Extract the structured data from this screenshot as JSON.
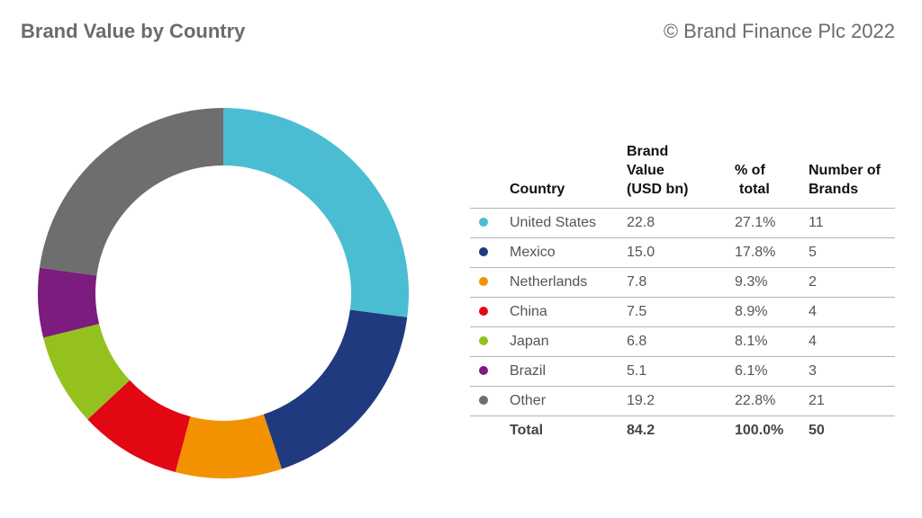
{
  "header": {
    "title": "Brand Value by Country",
    "copyright": "© Brand Finance Plc 2022"
  },
  "table": {
    "headers": {
      "country": "Country",
      "value_line1": "Brand",
      "value_line2": "Value",
      "value_line3": "(USD bn)",
      "pct_line1": "% of",
      "pct_line2": "total",
      "num_line1": "Number of",
      "num_line2": "Brands"
    },
    "rows": [
      {
        "country": "United States",
        "value": "22.8",
        "pct": "27.1%",
        "brands": "11",
        "color": "#4bbdd3"
      },
      {
        "country": "Mexico",
        "value": "15.0",
        "pct": "17.8%",
        "brands": "5",
        "color": "#1f3a7f"
      },
      {
        "country": "Netherlands",
        "value": "7.8",
        "pct": "9.3%",
        "brands": "2",
        "color": "#f39200"
      },
      {
        "country": "China",
        "value": "7.5",
        "pct": "8.9%",
        "brands": "4",
        "color": "#e30613"
      },
      {
        "country": "Japan",
        "value": "6.8",
        "pct": "8.1%",
        "brands": "4",
        "color": "#95c11f"
      },
      {
        "country": "Brazil",
        "value": "5.1",
        "pct": "6.1%",
        "brands": "3",
        "color": "#7b1c7e"
      },
      {
        "country": "Other",
        "value": "19.2",
        "pct": "22.8%",
        "brands": "21",
        "color": "#6f6e6e"
      }
    ],
    "total": {
      "label": "Total",
      "value": "84.2",
      "pct": "100.0%",
      "brands": "50"
    }
  },
  "chart_data": {
    "type": "pie",
    "title": "Brand Value by Country",
    "categories": [
      "United States",
      "Mexico",
      "Netherlands",
      "China",
      "Japan",
      "Brazil",
      "Other"
    ],
    "values": [
      22.8,
      15.0,
      7.8,
      7.5,
      6.8,
      5.1,
      19.2
    ],
    "colors": [
      "#4bbdd3",
      "#1f3a7f",
      "#f39200",
      "#e30613",
      "#95c11f",
      "#7b1c7e",
      "#6f6e6e"
    ],
    "donut": true,
    "start_angle": "12 o'clock, clockwise"
  }
}
